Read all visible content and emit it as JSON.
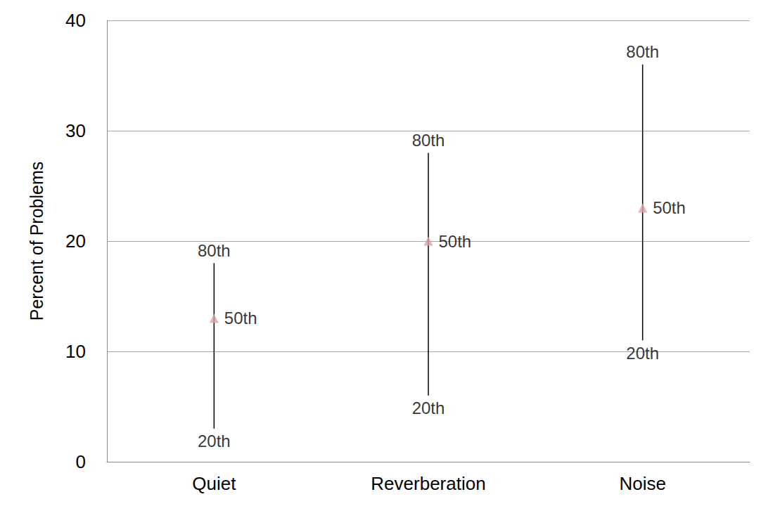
{
  "chart_data": {
    "type": "range",
    "y_label": "Percent of Problems",
    "categories": [
      "Quiet",
      "Reverberation",
      "Noise"
    ],
    "series": [
      {
        "name": "20th",
        "values": [
          3,
          6,
          11
        ]
      },
      {
        "name": "50th",
        "values": [
          13,
          20,
          23
        ],
        "color": "#d9a3a3",
        "marker": "triangle"
      },
      {
        "name": "80th",
        "values": [
          18,
          28,
          36
        ]
      }
    ],
    "color": "#000000",
    "ylim": [
      0,
      40
    ],
    "yticks": [
      0,
      10,
      20,
      30,
      40
    ],
    "grid": true
  }
}
